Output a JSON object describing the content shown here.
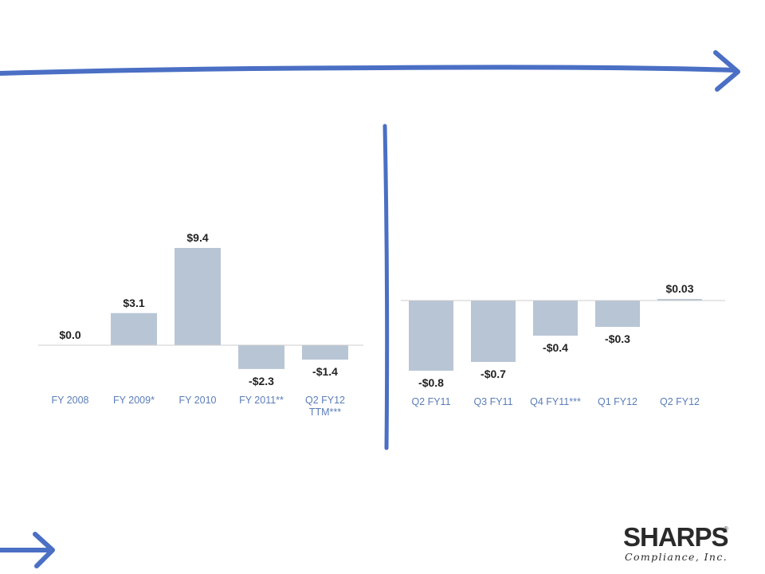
{
  "colors": {
    "bar": "#b8c5d5",
    "axis_text": "#5b7db8",
    "label": "#222222",
    "arrow": "#4a6fc4"
  },
  "chart_data": [
    {
      "type": "bar",
      "categories": [
        "FY 2008",
        "FY 2009*",
        "FY 2010",
        "FY 2011**",
        "Q2 FY12\nTTM***"
      ],
      "values": [
        0.0,
        3.1,
        9.4,
        -2.3,
        -1.4
      ],
      "data_labels": [
        "$0.0",
        "$3.1",
        "$9.4",
        "-$2.3",
        "-$1.4"
      ],
      "ylim": [
        -3,
        10
      ]
    },
    {
      "type": "bar",
      "categories": [
        "Q2 FY11",
        "Q3 FY11",
        "Q4 FY11***",
        "Q1 FY12",
        "Q2 FY12"
      ],
      "values": [
        -0.8,
        -0.7,
        -0.4,
        -0.3,
        0.03
      ],
      "data_labels": [
        "-$0.8",
        "-$0.7",
        "-$0.4",
        "-$0.3",
        "$0.03"
      ],
      "ylim": [
        -0.9,
        0.1
      ]
    }
  ],
  "logo": {
    "wordmark": "SHARPS",
    "tagline": "Compliance, Inc.",
    "registered": "®"
  }
}
